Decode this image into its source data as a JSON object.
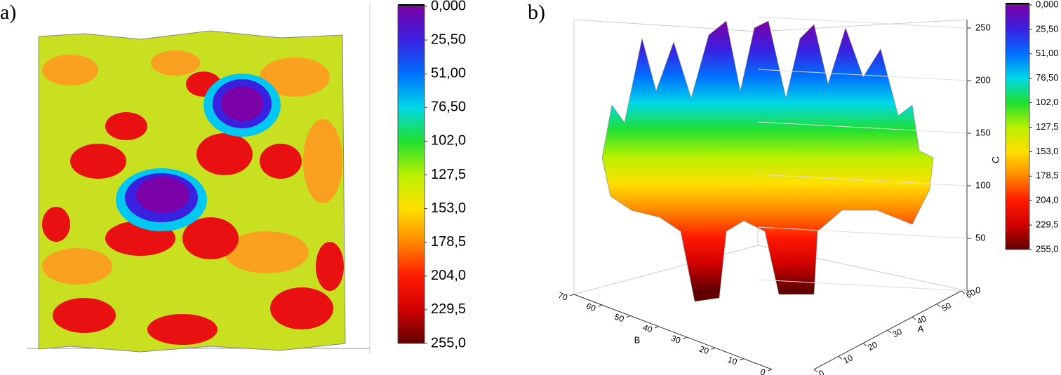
{
  "chart_data": [
    {
      "type": "surface",
      "label": "a)",
      "colorbar": {
        "lim": [
          0,
          255
        ],
        "ticks": [
          {
            "value": 0,
            "label": "0,000"
          },
          {
            "value": 25.5,
            "label": "25,50"
          },
          {
            "value": 51,
            "label": "51,00"
          },
          {
            "value": 76.5,
            "label": "76,50"
          },
          {
            "value": 102,
            "label": "102,0"
          },
          {
            "value": 127.5,
            "label": "127,5"
          },
          {
            "value": 153,
            "label": "153,0"
          },
          {
            "value": 178.5,
            "label": "178,5"
          },
          {
            "value": 204,
            "label": "204,0"
          },
          {
            "value": 229.5,
            "label": "229,5"
          },
          {
            "value": 255,
            "label": "255,0"
          }
        ],
        "colormap": [
          "#7a00a8",
          "#3a20e0",
          "#0070ff",
          "#00d8e8",
          "#20e030",
          "#b8f000",
          "#ffe000",
          "#ff8800",
          "#ff1a00",
          "#d00000",
          "#600000"
        ]
      }
    },
    {
      "type": "surface",
      "label": "b)",
      "zlabel": "C",
      "xlabel": "B",
      "ylabel": "A",
      "zlim": [
        0,
        260
      ],
      "zticks": [
        0,
        50,
        100,
        150,
        200,
        250
      ],
      "xlim": [
        0,
        70
      ],
      "xticks": [
        0,
        10,
        20,
        30,
        40,
        50,
        60,
        70
      ],
      "ylim": [
        0,
        60
      ],
      "yticks": [
        0,
        10,
        20,
        30,
        40,
        50,
        60
      ],
      "colorbar": {
        "lim": [
          0,
          255
        ],
        "ticks": [
          {
            "value": 0,
            "label": "0,000"
          },
          {
            "value": 25.5,
            "label": "25,50"
          },
          {
            "value": 51,
            "label": "51,00"
          },
          {
            "value": 76.5,
            "label": "76,50"
          },
          {
            "value": 102,
            "label": "102,0"
          },
          {
            "value": 127.5,
            "label": "127,5"
          },
          {
            "value": 153,
            "label": "153,0"
          },
          {
            "value": 178.5,
            "label": "178,5"
          },
          {
            "value": 204,
            "label": "204,0"
          },
          {
            "value": 229.5,
            "label": "229,5"
          },
          {
            "value": 255,
            "label": "255,0"
          }
        ],
        "colormap": [
          "#7a00a8",
          "#3a20e0",
          "#0070ff",
          "#00d8e8",
          "#20e030",
          "#b8f000",
          "#ffe000",
          "#ff8800",
          "#ff1a00",
          "#d00000",
          "#600000"
        ]
      }
    }
  ]
}
